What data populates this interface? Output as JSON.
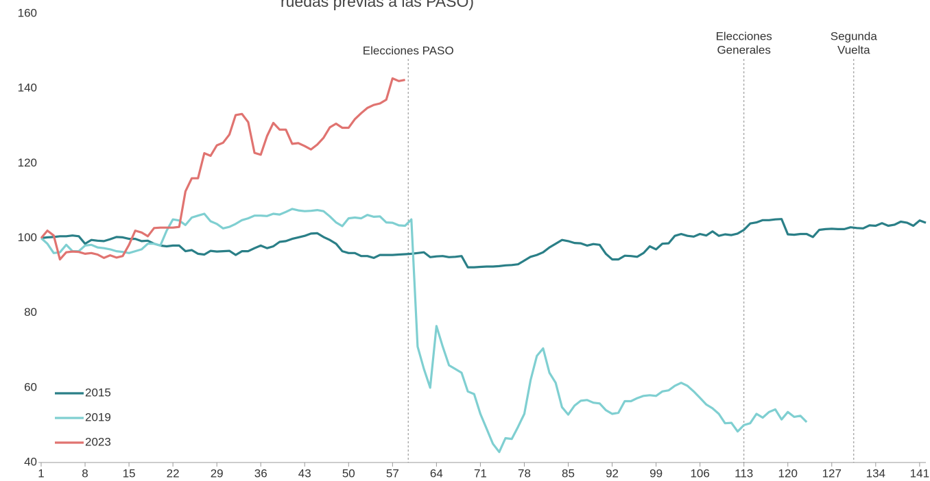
{
  "chart_data": {
    "type": "line",
    "title": "ruedas previas a las PASO)",
    "x": [
      1,
      2,
      3,
      4,
      5,
      6,
      7,
      8,
      9,
      10,
      11,
      12,
      13,
      14,
      15,
      16,
      17,
      18,
      19,
      20,
      21,
      22,
      23,
      24,
      25,
      26,
      27,
      28,
      29,
      30,
      31,
      32,
      33,
      34,
      35,
      36,
      37,
      38,
      39,
      40,
      41,
      42,
      43,
      44,
      45,
      46,
      47,
      48,
      49,
      50,
      51,
      52,
      53,
      54,
      55,
      56,
      57,
      58,
      59,
      60,
      61,
      62,
      63,
      64,
      65,
      66,
      67,
      68,
      69,
      70,
      71,
      72,
      73,
      74,
      75,
      76,
      77,
      78,
      79,
      80,
      81,
      82,
      83,
      84,
      85,
      86,
      87,
      88,
      89,
      90,
      91,
      92,
      93,
      94,
      95,
      96,
      97,
      98,
      99,
      100,
      101,
      102,
      103,
      104,
      105,
      106,
      107,
      108,
      109,
      110,
      111,
      112,
      113,
      114,
      115,
      116,
      117,
      118,
      119,
      120,
      121,
      122,
      123,
      124,
      125,
      126,
      127,
      128,
      129,
      130,
      131,
      132,
      133,
      134,
      135,
      136,
      137,
      138,
      139,
      140,
      141,
      142
    ],
    "series": [
      {
        "name": "2015",
        "color": "#2a7f87",
        "values": [
          100,
          100.2,
          100.3,
          100.5,
          100.5,
          100.7,
          100.5,
          98.5,
          99.5,
          99.3,
          99.2,
          99.7,
          100.3,
          100.2,
          99.8,
          99.8,
          99.2,
          99.3,
          98.5,
          98,
          97.8,
          98,
          98,
          96.5,
          96.8,
          95.8,
          95.6,
          96.6,
          96.4,
          96.5,
          96.6,
          95.5,
          96.5,
          96.5,
          97.3,
          98,
          97.3,
          97.8,
          99,
          99.2,
          99.8,
          100.2,
          100.6,
          101.2,
          101.3,
          100.3,
          99.5,
          98.5,
          96.5,
          96,
          96,
          95.2,
          95.2,
          94.7,
          95.5,
          95.5,
          95.5,
          95.6,
          95.7,
          95.8,
          96,
          96.2,
          94.9,
          95.1,
          95.2,
          94.9,
          95,
          95.2,
          92.2,
          92.2,
          92.3,
          92.4,
          92.4,
          92.5,
          92.7,
          92.8,
          93,
          94,
          95,
          95.5,
          96.2,
          97.5,
          98.5,
          99.5,
          99.2,
          98.7,
          98.6,
          98,
          98.4,
          98.2,
          95.8,
          94.3,
          94.3,
          95.3,
          95.2,
          95,
          96,
          97.8,
          97,
          98.5,
          98.6,
          100.6,
          101.1,
          100.6,
          100.4,
          101.1,
          100.7,
          101.8,
          100.6,
          101,
          100.8,
          101.2,
          102.2,
          103.9,
          104.2,
          104.8,
          104.8,
          105,
          105.1,
          101,
          100.9,
          101.1,
          101.1,
          100.3,
          102.2,
          102.4,
          102.5,
          102.4,
          102.4,
          102.9,
          102.7,
          102.6,
          103.4,
          103.3,
          104,
          103.3,
          103.6,
          104.4,
          104.1,
          103.3,
          104.7,
          104.1
        ]
      },
      {
        "name": "2019",
        "color": "#7fcfd1",
        "values": [
          100,
          98.5,
          96,
          96.2,
          98.2,
          96.5,
          96.5,
          98,
          98.2,
          97.5,
          97.3,
          97,
          96.5,
          96.3,
          96,
          96.5,
          97,
          98.5,
          98.5,
          98,
          102,
          105,
          104.7,
          103.5,
          105.5,
          106,
          106.5,
          104.5,
          103.8,
          102.6,
          103,
          103.8,
          104.8,
          105.3,
          106,
          106,
          105.9,
          106.5,
          106.3,
          107,
          107.8,
          107.4,
          107.2,
          107.3,
          107.5,
          107.2,
          105.8,
          104.2,
          103.2,
          105.3,
          105.5,
          105.3,
          106.2,
          105.7,
          105.8,
          104.2,
          104.1,
          103.4,
          103.3,
          105,
          71,
          65,
          60,
          76.5,
          71,
          66,
          65,
          64,
          59,
          58.3,
          53,
          49,
          45,
          42.8,
          46.5,
          46.3,
          49.5,
          53,
          62,
          68.5,
          70.5,
          64,
          61.3,
          54.8,
          52.8,
          55.2,
          56.5,
          56.7,
          56,
          55.8,
          54,
          53,
          53.3,
          56.4,
          56.4,
          57.2,
          57.8,
          58,
          57.8,
          59,
          59.3,
          60.5,
          61.3,
          60.5,
          59,
          57.3,
          55.5,
          54.5,
          53,
          50.5,
          50.6,
          48.3,
          50,
          50.5,
          53,
          52,
          53.5,
          54.2,
          51.5,
          53.5,
          52.2,
          52.5,
          50.8,
          null,
          null,
          null,
          null,
          null,
          null,
          null,
          null,
          null,
          null,
          null,
          null,
          null,
          null,
          null,
          null,
          null,
          null,
          null
        ]
      },
      {
        "name": "2023",
        "color": "#e07370",
        "values": [
          100,
          102,
          100.7,
          94.3,
          96.2,
          96.4,
          96.3,
          95.8,
          96,
          95.6,
          94.7,
          95.4,
          94.8,
          95.2,
          98.2,
          102,
          101.5,
          100.5,
          102.7,
          102.8,
          102.8,
          102.8,
          103,
          112.5,
          116,
          116,
          122.7,
          122,
          124.8,
          125.5,
          127.7,
          132.9,
          133.2,
          131,
          122.8,
          122.3,
          127.3,
          130.8,
          129,
          129,
          125.2,
          125.4,
          124.6,
          123.7,
          125,
          126.8,
          129.6,
          130.6,
          129.5,
          129.5,
          131.8,
          133.4,
          134.8,
          135.6,
          136,
          137,
          142.7,
          142,
          142.3,
          null,
          null,
          null,
          null,
          null,
          null,
          null,
          null,
          null,
          null,
          null,
          null,
          null,
          null,
          null,
          null,
          null,
          null,
          null,
          null,
          null,
          null,
          null,
          null,
          null,
          null,
          null,
          null,
          null,
          null,
          null,
          null,
          null,
          null,
          null,
          null,
          null,
          null,
          null,
          null,
          null,
          null,
          null,
          null,
          null,
          null,
          null,
          null,
          null,
          null,
          null,
          null,
          null,
          null,
          null,
          null,
          null,
          null,
          null,
          null,
          null,
          null,
          null,
          null,
          null,
          null,
          null,
          null,
          null,
          null,
          null,
          null,
          null,
          null,
          null,
          null,
          null,
          null,
          null,
          null,
          null,
          null,
          null
        ]
      }
    ],
    "xlim": [
      1,
      142
    ],
    "xticks": [
      1,
      8,
      15,
      22,
      29,
      36,
      43,
      50,
      57,
      64,
      71,
      78,
      85,
      92,
      99,
      106,
      113,
      120,
      127,
      134,
      141
    ],
    "ylim": [
      40,
      160
    ],
    "yticks": [
      40,
      60,
      80,
      100,
      120,
      140,
      160
    ],
    "grid": false,
    "legend": "lower left",
    "annotations": [
      {
        "x": 59.5,
        "lines": [
          "Elecciones PASO"
        ]
      },
      {
        "x": 113,
        "lines": [
          "Elecciones",
          "Generales"
        ]
      },
      {
        "x": 130.5,
        "lines": [
          "Segunda",
          "Vuelta"
        ]
      }
    ]
  }
}
